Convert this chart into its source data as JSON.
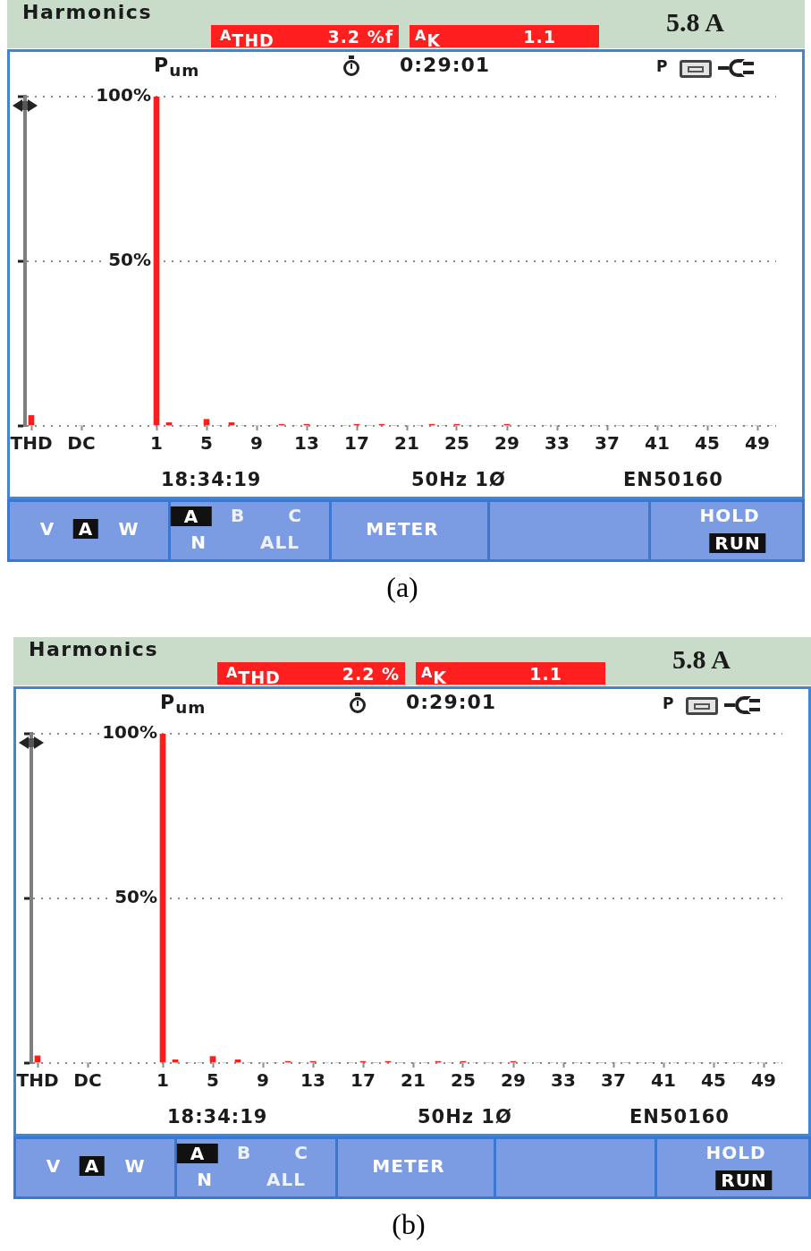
{
  "chart_data": [
    {
      "type": "bar",
      "title": "Harmonics",
      "categories": [
        "THD",
        null,
        null,
        null,
        "DC",
        null,
        null,
        null,
        null,
        null,
        "1",
        null,
        null,
        null,
        "5",
        null,
        null,
        null,
        "9",
        null,
        null,
        null,
        "13",
        null,
        null,
        null,
        "17",
        null,
        null,
        null,
        "21",
        null,
        null,
        null,
        "25",
        null,
        null,
        null,
        "29",
        null,
        null,
        null,
        "33",
        null,
        null,
        null,
        "37",
        null,
        null,
        null,
        "41",
        null,
        null,
        null,
        "45",
        null,
        null,
        null,
        "49",
        null
      ],
      "values": [
        3.2,
        null,
        null,
        null,
        0,
        null,
        null,
        null,
        null,
        null,
        100,
        1,
        0,
        0,
        2,
        0,
        1,
        0,
        0,
        0,
        0.5,
        0,
        0.5,
        0,
        0,
        0,
        0.5,
        0,
        0.5,
        0,
        0,
        0,
        0.5,
        0,
        0.5,
        0,
        0,
        0,
        0.5,
        0,
        0,
        0,
        0,
        0,
        0,
        0,
        0,
        0,
        0,
        0,
        0,
        0,
        0,
        0,
        0,
        0,
        0,
        0,
        0,
        0
      ],
      "color": "#ff1c1c",
      "ylim": [
        0,
        100
      ],
      "yticks": [
        {
          "value": 0,
          "label": null
        },
        {
          "value": 50,
          "label": "50%"
        },
        {
          "value": 100,
          "label": "100%"
        }
      ],
      "grid": "y",
      "annotations": [
        "$^{A}$THD",
        "3.2 %f",
        "$^{A}$K",
        "1.1",
        "5.8 A",
        "P$_{um}$",
        "0:29:01",
        "P",
        "18:34:19",
        "50Hz 1Ø",
        "EN50160",
        "V",
        "A",
        "W",
        "A",
        "B",
        "C",
        "N",
        "ALL",
        "METER",
        "HOLD",
        "RUN",
        "(a)"
      ]
    },
    {
      "type": "bar",
      "title": "Harmonics",
      "categories": [
        "THD",
        null,
        null,
        null,
        "DC",
        null,
        null,
        null,
        null,
        null,
        "1",
        null,
        null,
        null,
        "5",
        null,
        null,
        null,
        "9",
        null,
        null,
        null,
        "13",
        null,
        null,
        null,
        "17",
        null,
        null,
        null,
        "21",
        null,
        null,
        null,
        "25",
        null,
        null,
        null,
        "29",
        null,
        null,
        null,
        "33",
        null,
        null,
        null,
        "37",
        null,
        null,
        null,
        "41",
        null,
        null,
        null,
        "45",
        null,
        null,
        null,
        "49",
        null
      ],
      "values": [
        2.2,
        null,
        null,
        null,
        0,
        null,
        null,
        null,
        null,
        null,
        100,
        1,
        0,
        0,
        2,
        0,
        1,
        0,
        0,
        0,
        0.5,
        0,
        0.5,
        0,
        0,
        0,
        0.5,
        0,
        0.5,
        0,
        0,
        0,
        0.5,
        0,
        0.5,
        0,
        0,
        0,
        0.5,
        0,
        0,
        0,
        0,
        0,
        0,
        0,
        0,
        0,
        0,
        0,
        0,
        0,
        0,
        0,
        0,
        0,
        0,
        0,
        0,
        0
      ],
      "color": "#ff1c1c",
      "ylim": [
        0,
        100
      ],
      "yticks": [
        {
          "value": 0,
          "label": null
        },
        {
          "value": 50,
          "label": "50%"
        },
        {
          "value": 100,
          "label": "100%"
        }
      ],
      "grid": "y",
      "annotations": [
        "$^{A}$THD",
        "2.2 %",
        "$^{A}$K",
        "1.1",
        "5.8 A",
        "P$_{um}$",
        "0:29:01",
        "P",
        "18:34:19",
        "50Hz 1Ø",
        "EN50160",
        "V",
        "A",
        "W",
        "A",
        "B",
        "C",
        "N",
        "ALL",
        "METER",
        "HOLD",
        "RUN",
        "(b)"
      ]
    }
  ]
}
